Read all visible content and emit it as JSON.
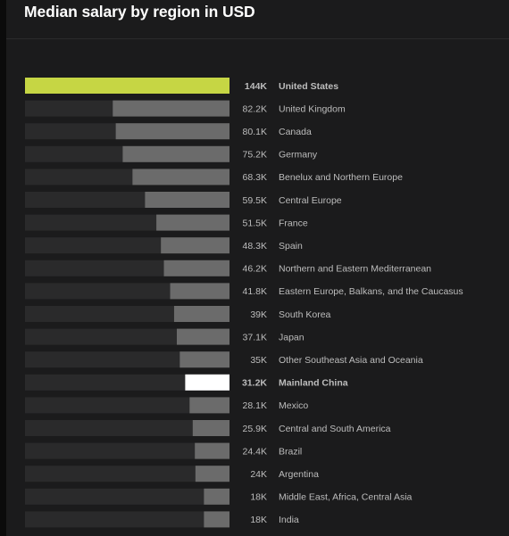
{
  "title": "Median salary by region in USD",
  "chart_data": {
    "type": "bar",
    "orientation": "horizontal",
    "title": "Median salary by region in USD",
    "categories": [
      "United States",
      "United Kingdom",
      "Canada",
      "Germany",
      "Benelux and Northern Europe",
      "Central Europe",
      "France",
      "Spain",
      "Northern and Eastern Mediterranean",
      "Eastern Europe, Balkans, and the Caucasus",
      "South Korea",
      "Japan",
      "Other Southeast Asia and Oceania",
      "Mainland China",
      "Mexico",
      "Central and South America",
      "Brazil",
      "Argentina",
      "Middle East, Africa, Central Asia",
      "India"
    ],
    "values": [
      144,
      82.2,
      80.1,
      75.2,
      68.3,
      59.5,
      51.5,
      48.3,
      46.2,
      41.8,
      39,
      37.1,
      35,
      31.2,
      28.1,
      25.9,
      24.4,
      24,
      18,
      18
    ],
    "value_labels": [
      "144K",
      "82.2K",
      "80.1K",
      "75.2K",
      "68.3K",
      "59.5K",
      "51.5K",
      "48.3K",
      "46.2K",
      "41.8K",
      "39K",
      "37.1K",
      "35K",
      "31.2K",
      "28.1K",
      "25.9K",
      "24.4K",
      "24K",
      "18K",
      "18K"
    ],
    "units": "thousand USD",
    "xlim": [
      0,
      144
    ],
    "highlights": {
      "United States": "#c6d644",
      "Mainland China": "#ffffff"
    },
    "colors": {
      "default_bar": "#6b6b6b",
      "track": "#2a2a2b",
      "label": "#bdbdbd"
    }
  }
}
